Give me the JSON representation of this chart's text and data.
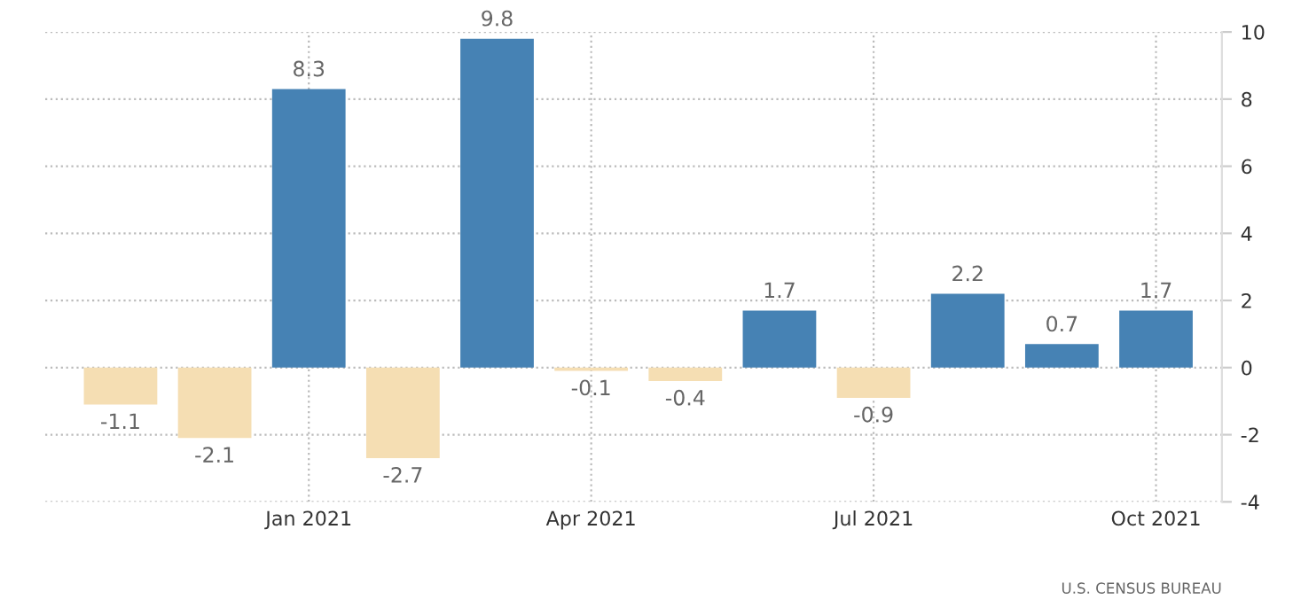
{
  "chart_data": {
    "type": "bar",
    "categories": [
      null,
      null,
      "Jan 2021",
      null,
      null,
      "Apr 2021",
      null,
      null,
      "Jul 2021",
      null,
      null,
      "Oct 2021"
    ],
    "values": [
      -1.1,
      -2.1,
      8.3,
      -2.7,
      9.8,
      -0.1,
      -0.4,
      1.7,
      -0.9,
      2.2,
      0.7,
      1.7
    ],
    "colors": [
      "#f5deb3",
      "#f5deb3",
      "#4682b4",
      "#f5deb3",
      "#4682b4",
      "#f5deb3",
      "#f5deb3",
      "#4682b4",
      "#f5deb3",
      "#4682b4",
      "#4682b4",
      "#4682b4"
    ],
    "ylim": [
      -4,
      10
    ],
    "yticks": [
      -4,
      -2,
      0,
      2,
      4,
      6,
      8,
      10
    ],
    "grid": true,
    "data_labels": true,
    "annotations": [
      "U.S. CENSUS BUREAU"
    ]
  }
}
